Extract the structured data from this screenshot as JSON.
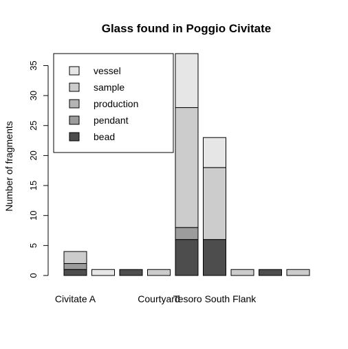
{
  "chart_data": {
    "type": "bar",
    "stacked": true,
    "title": "Glass found in Poggio Civitate",
    "xlabel": "",
    "ylabel": "Number of fragments",
    "ylim": [
      0,
      37
    ],
    "yticks": [
      0,
      5,
      10,
      15,
      20,
      25,
      30,
      35
    ],
    "categories": [
      "Civitate A",
      "",
      "",
      "Courtyard",
      "",
      "Tesoro South Flank",
      "",
      "",
      ""
    ],
    "series": [
      {
        "name": "bead",
        "color": "#4d4d4d",
        "values": [
          1,
          0,
          1,
          0,
          6,
          6,
          0,
          1,
          0
        ]
      },
      {
        "name": "pendant",
        "color": "#9c9c9c",
        "values": [
          1,
          0,
          0,
          0,
          2,
          0,
          0,
          0,
          0
        ]
      },
      {
        "name": "production",
        "color": "#b4b4b4",
        "values": [
          0,
          0,
          0,
          0,
          0,
          0,
          0,
          0,
          0
        ]
      },
      {
        "name": "sample",
        "color": "#cccccc",
        "values": [
          2,
          0,
          0,
          1,
          20,
          12,
          1,
          0,
          1
        ]
      },
      {
        "name": "vessel",
        "color": "#e6e6e6",
        "values": [
          0,
          1,
          0,
          0,
          9,
          5,
          0,
          0,
          0
        ]
      }
    ],
    "legend_order": [
      "vessel",
      "sample",
      "production",
      "pendant",
      "bead"
    ],
    "legend_position": "top-left",
    "grid": false
  }
}
